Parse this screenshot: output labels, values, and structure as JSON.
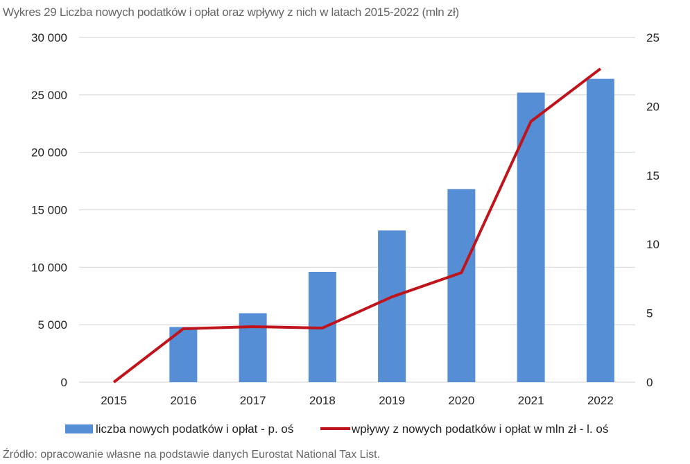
{
  "chart_data": {
    "type": "bar+line",
    "title": "Wykres 29 Liczba nowych podatków i opłat oraz wpływy z nich w latach 2015-2022 (mln zł)",
    "source": "Źródło: opracowanie własne na podstawie danych Eurostat National Tax List.",
    "categories": [
      "2015",
      "2016",
      "2017",
      "2018",
      "2019",
      "2020",
      "2021",
      "2022"
    ],
    "left_axis": {
      "range": [
        0,
        30000
      ],
      "ticks": [
        "0",
        "5 000",
        "10 000",
        "15 000",
        "20 000",
        "25 000",
        "30 000"
      ],
      "tick_values": [
        0,
        5000,
        10000,
        15000,
        20000,
        25000,
        30000
      ]
    },
    "right_axis": {
      "range": [
        0,
        25
      ],
      "ticks": [
        "0",
        "5",
        "10",
        "15",
        "20",
        "25"
      ],
      "tick_values": [
        0,
        5,
        10,
        15,
        20,
        25
      ]
    },
    "grid": true,
    "legend_position": "bottom",
    "series": [
      {
        "name": "liczba nowych podatków i opłat - p. oś",
        "type": "bar",
        "axis": "right",
        "color": "#558ED5",
        "values": [
          0,
          4,
          5,
          8,
          11,
          14,
          21,
          22
        ]
      },
      {
        "name": "wpływy z nowych podatków i opłat w mln zł - l. oś",
        "type": "line",
        "axis": "left",
        "color": "#C0141C",
        "values": [
          0,
          4650,
          4830,
          4710,
          7420,
          9530,
          22690,
          27280
        ]
      }
    ]
  }
}
